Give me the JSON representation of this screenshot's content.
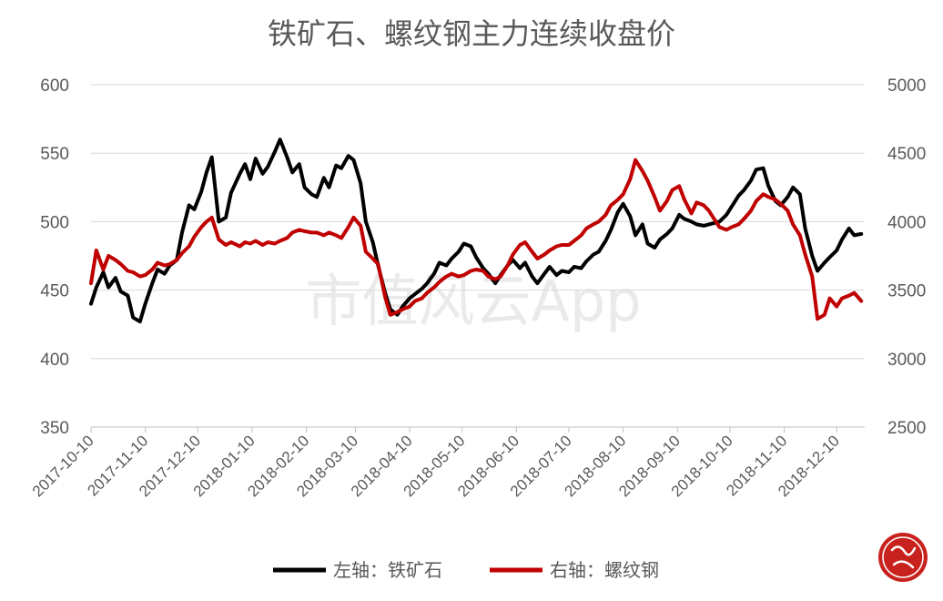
{
  "colors": {
    "iron_ore": "#000000",
    "rebar": "#c00000",
    "seal": "#c8221e"
  },
  "watermark": "市值风云App",
  "chart_data": {
    "type": "line",
    "title": "铁矿石、螺纹钢主力连续收盘价",
    "left_axis": {
      "ylim": [
        350,
        600
      ],
      "ticks": [
        "350",
        "400",
        "450",
        "500",
        "550",
        "600"
      ]
    },
    "right_axis": {
      "ylim": [
        2500,
        5000
      ],
      "ticks": [
        "2500",
        "3000",
        "3500",
        "4000",
        "4500",
        "5000"
      ]
    },
    "x_ticks": [
      "2017-10-10",
      "2017-11-10",
      "2017-12-10",
      "2018-01-10",
      "2018-02-10",
      "2018-03-10",
      "2018-04-10",
      "2018-05-10",
      "2018-06-10",
      "2018-07-10",
      "2018-08-10",
      "2018-09-10",
      "2018-10-10",
      "2018-11-10",
      "2018-12-10"
    ],
    "grid": true,
    "legend_position": "bottom",
    "series": [
      {
        "name": "左轴：铁矿石",
        "axis": "left",
        "color": "#000000",
        "points": [
          [
            "2017-10-10",
            440
          ],
          [
            "2017-10-13",
            452
          ],
          [
            "2017-10-17",
            463
          ],
          [
            "2017-10-20",
            452
          ],
          [
            "2017-10-24",
            459
          ],
          [
            "2017-10-27",
            449
          ],
          [
            "2017-10-31",
            446
          ],
          [
            "2017-11-03",
            430
          ],
          [
            "2017-11-07",
            427
          ],
          [
            "2017-11-10",
            440
          ],
          [
            "2017-11-14",
            455
          ],
          [
            "2017-11-17",
            465
          ],
          [
            "2017-11-21",
            462
          ],
          [
            "2017-11-24",
            468
          ],
          [
            "2017-11-28",
            472
          ],
          [
            "2017-12-01",
            492
          ],
          [
            "2017-12-05",
            512
          ],
          [
            "2017-12-08",
            509
          ],
          [
            "2017-12-12",
            522
          ],
          [
            "2017-12-15",
            536
          ],
          [
            "2017-12-18",
            547
          ],
          [
            "2017-12-22",
            500
          ],
          [
            "2017-12-26",
            503
          ],
          [
            "2017-12-29",
            521
          ],
          [
            "2018-01-03",
            535
          ],
          [
            "2018-01-06",
            542
          ],
          [
            "2018-01-09",
            531
          ],
          [
            "2018-01-12",
            546
          ],
          [
            "2018-01-16",
            535
          ],
          [
            "2018-01-19",
            540
          ],
          [
            "2018-01-23",
            551
          ],
          [
            "2018-01-26",
            560
          ],
          [
            "2018-01-30",
            547
          ],
          [
            "2018-02-02",
            536
          ],
          [
            "2018-02-06",
            542
          ],
          [
            "2018-02-09",
            525
          ],
          [
            "2018-02-13",
            520
          ],
          [
            "2018-02-16",
            518
          ],
          [
            "2018-02-20",
            532
          ],
          [
            "2018-02-23",
            525
          ],
          [
            "2018-02-27",
            541
          ],
          [
            "2018-03-02",
            539
          ],
          [
            "2018-03-06",
            548
          ],
          [
            "2018-03-09",
            545
          ],
          [
            "2018-03-13",
            528
          ],
          [
            "2018-03-16",
            500
          ],
          [
            "2018-03-20",
            485
          ],
          [
            "2018-03-23",
            468
          ],
          [
            "2018-03-27",
            448
          ],
          [
            "2018-03-30",
            436
          ],
          [
            "2018-04-03",
            432
          ],
          [
            "2018-04-06",
            438
          ],
          [
            "2018-04-10",
            444
          ],
          [
            "2018-04-13",
            447
          ],
          [
            "2018-04-17",
            451
          ],
          [
            "2018-04-20",
            455
          ],
          [
            "2018-04-24",
            462
          ],
          [
            "2018-04-27",
            470
          ],
          [
            "2018-05-01",
            468
          ],
          [
            "2018-05-04",
            473
          ],
          [
            "2018-05-08",
            478
          ],
          [
            "2018-05-11",
            484
          ],
          [
            "2018-05-15",
            482
          ],
          [
            "2018-05-18",
            474
          ],
          [
            "2018-05-22",
            466
          ],
          [
            "2018-05-25",
            462
          ],
          [
            "2018-05-29",
            455
          ],
          [
            "2018-06-01",
            461
          ],
          [
            "2018-06-05",
            468
          ],
          [
            "2018-06-08",
            472
          ],
          [
            "2018-06-12",
            466
          ],
          [
            "2018-06-15",
            470
          ],
          [
            "2018-06-19",
            460
          ],
          [
            "2018-06-22",
            455
          ],
          [
            "2018-06-26",
            462
          ],
          [
            "2018-06-29",
            467
          ],
          [
            "2018-07-03",
            461
          ],
          [
            "2018-07-06",
            464
          ],
          [
            "2018-07-10",
            463
          ],
          [
            "2018-07-13",
            467
          ],
          [
            "2018-07-17",
            466
          ],
          [
            "2018-07-20",
            471
          ],
          [
            "2018-07-24",
            476
          ],
          [
            "2018-07-27",
            478
          ],
          [
            "2018-07-31",
            486
          ],
          [
            "2018-08-03",
            494
          ],
          [
            "2018-08-07",
            507
          ],
          [
            "2018-08-10",
            513
          ],
          [
            "2018-08-14",
            504
          ],
          [
            "2018-08-17",
            490
          ],
          [
            "2018-08-21",
            498
          ],
          [
            "2018-08-24",
            484
          ],
          [
            "2018-08-28",
            481
          ],
          [
            "2018-08-31",
            487
          ],
          [
            "2018-09-04",
            491
          ],
          [
            "2018-09-07",
            495
          ],
          [
            "2018-09-11",
            505
          ],
          [
            "2018-09-14",
            502
          ],
          [
            "2018-09-18",
            500
          ],
          [
            "2018-09-21",
            498
          ],
          [
            "2018-09-25",
            497
          ],
          [
            "2018-09-28",
            498
          ],
          [
            "2018-10-04",
            500
          ],
          [
            "2018-10-08",
            505
          ],
          [
            "2018-10-11",
            511
          ],
          [
            "2018-10-15",
            519
          ],
          [
            "2018-10-18",
            523
          ],
          [
            "2018-10-22",
            530
          ],
          [
            "2018-10-25",
            538
          ],
          [
            "2018-10-29",
            539
          ],
          [
            "2018-11-01",
            526
          ],
          [
            "2018-11-05",
            515
          ],
          [
            "2018-11-08",
            512
          ],
          [
            "2018-11-12",
            518
          ],
          [
            "2018-11-15",
            525
          ],
          [
            "2018-11-19",
            520
          ],
          [
            "2018-11-22",
            495
          ],
          [
            "2018-11-26",
            475
          ],
          [
            "2018-11-29",
            464
          ],
          [
            "2018-12-03",
            470
          ],
          [
            "2018-12-06",
            474
          ],
          [
            "2018-12-10",
            479
          ],
          [
            "2018-12-13",
            487
          ],
          [
            "2018-12-17",
            495
          ],
          [
            "2018-12-20",
            490
          ],
          [
            "2018-12-24",
            491
          ]
        ]
      },
      {
        "name": "右轴：螺纹钢",
        "axis": "right",
        "color": "#c00000",
        "points": [
          [
            "2017-10-10",
            3550
          ],
          [
            "2017-10-13",
            3790
          ],
          [
            "2017-10-17",
            3650
          ],
          [
            "2017-10-20",
            3750
          ],
          [
            "2017-10-24",
            3720
          ],
          [
            "2017-10-27",
            3690
          ],
          [
            "2017-10-31",
            3640
          ],
          [
            "2017-11-03",
            3630
          ],
          [
            "2017-11-07",
            3600
          ],
          [
            "2017-11-10",
            3610
          ],
          [
            "2017-11-14",
            3650
          ],
          [
            "2017-11-17",
            3700
          ],
          [
            "2017-11-21",
            3680
          ],
          [
            "2017-11-24",
            3690
          ],
          [
            "2017-11-28",
            3720
          ],
          [
            "2017-12-01",
            3770
          ],
          [
            "2017-12-05",
            3820
          ],
          [
            "2017-12-08",
            3890
          ],
          [
            "2017-12-12",
            3960
          ],
          [
            "2017-12-15",
            4000
          ],
          [
            "2017-12-18",
            4030
          ],
          [
            "2017-12-22",
            3870
          ],
          [
            "2017-12-26",
            3830
          ],
          [
            "2017-12-29",
            3850
          ],
          [
            "2018-01-03",
            3820
          ],
          [
            "2018-01-06",
            3850
          ],
          [
            "2018-01-09",
            3840
          ],
          [
            "2018-01-12",
            3860
          ],
          [
            "2018-01-16",
            3830
          ],
          [
            "2018-01-19",
            3850
          ],
          [
            "2018-01-23",
            3840
          ],
          [
            "2018-01-26",
            3860
          ],
          [
            "2018-01-30",
            3880
          ],
          [
            "2018-02-02",
            3920
          ],
          [
            "2018-02-06",
            3940
          ],
          [
            "2018-02-09",
            3930
          ],
          [
            "2018-02-13",
            3920
          ],
          [
            "2018-02-16",
            3920
          ],
          [
            "2018-02-20",
            3900
          ],
          [
            "2018-02-23",
            3920
          ],
          [
            "2018-02-27",
            3900
          ],
          [
            "2018-03-02",
            3880
          ],
          [
            "2018-03-06",
            3960
          ],
          [
            "2018-03-09",
            4030
          ],
          [
            "2018-03-13",
            3970
          ],
          [
            "2018-03-16",
            3780
          ],
          [
            "2018-03-20",
            3730
          ],
          [
            "2018-03-23",
            3690
          ],
          [
            "2018-03-27",
            3450
          ],
          [
            "2018-03-30",
            3320
          ],
          [
            "2018-04-03",
            3340
          ],
          [
            "2018-04-06",
            3360
          ],
          [
            "2018-04-10",
            3380
          ],
          [
            "2018-04-13",
            3420
          ],
          [
            "2018-04-17",
            3440
          ],
          [
            "2018-04-20",
            3480
          ],
          [
            "2018-04-24",
            3520
          ],
          [
            "2018-04-27",
            3560
          ],
          [
            "2018-05-01",
            3600
          ],
          [
            "2018-05-04",
            3620
          ],
          [
            "2018-05-08",
            3600
          ],
          [
            "2018-05-11",
            3610
          ],
          [
            "2018-05-15",
            3640
          ],
          [
            "2018-05-18",
            3650
          ],
          [
            "2018-05-22",
            3640
          ],
          [
            "2018-05-25",
            3600
          ],
          [
            "2018-05-29",
            3580
          ],
          [
            "2018-06-01",
            3600
          ],
          [
            "2018-06-05",
            3680
          ],
          [
            "2018-06-08",
            3760
          ],
          [
            "2018-06-12",
            3830
          ],
          [
            "2018-06-15",
            3850
          ],
          [
            "2018-06-19",
            3780
          ],
          [
            "2018-06-22",
            3730
          ],
          [
            "2018-06-26",
            3760
          ],
          [
            "2018-06-29",
            3790
          ],
          [
            "2018-07-03",
            3820
          ],
          [
            "2018-07-06",
            3830
          ],
          [
            "2018-07-10",
            3830
          ],
          [
            "2018-07-13",
            3860
          ],
          [
            "2018-07-17",
            3900
          ],
          [
            "2018-07-20",
            3950
          ],
          [
            "2018-07-24",
            3980
          ],
          [
            "2018-07-27",
            4000
          ],
          [
            "2018-07-31",
            4050
          ],
          [
            "2018-08-03",
            4120
          ],
          [
            "2018-08-07",
            4160
          ],
          [
            "2018-08-10",
            4200
          ],
          [
            "2018-08-14",
            4310
          ],
          [
            "2018-08-17",
            4450
          ],
          [
            "2018-08-21",
            4370
          ],
          [
            "2018-08-24",
            4300
          ],
          [
            "2018-08-28",
            4180
          ],
          [
            "2018-08-31",
            4080
          ],
          [
            "2018-09-04",
            4150
          ],
          [
            "2018-09-07",
            4230
          ],
          [
            "2018-09-11",
            4260
          ],
          [
            "2018-09-14",
            4160
          ],
          [
            "2018-09-18",
            4060
          ],
          [
            "2018-09-21",
            4140
          ],
          [
            "2018-09-25",
            4120
          ],
          [
            "2018-09-28",
            4080
          ],
          [
            "2018-10-04",
            3960
          ],
          [
            "2018-10-08",
            3940
          ],
          [
            "2018-10-11",
            3960
          ],
          [
            "2018-10-15",
            3980
          ],
          [
            "2018-10-18",
            4020
          ],
          [
            "2018-10-22",
            4080
          ],
          [
            "2018-10-25",
            4150
          ],
          [
            "2018-10-29",
            4200
          ],
          [
            "2018-11-01",
            4180
          ],
          [
            "2018-11-05",
            4160
          ],
          [
            "2018-11-08",
            4130
          ],
          [
            "2018-11-12",
            4080
          ],
          [
            "2018-11-15",
            3980
          ],
          [
            "2018-11-19",
            3900
          ],
          [
            "2018-11-22",
            3760
          ],
          [
            "2018-11-26",
            3600
          ],
          [
            "2018-11-29",
            3290
          ],
          [
            "2018-12-03",
            3320
          ],
          [
            "2018-12-06",
            3440
          ],
          [
            "2018-12-10",
            3380
          ],
          [
            "2018-12-13",
            3440
          ],
          [
            "2018-12-17",
            3460
          ],
          [
            "2018-12-20",
            3480
          ],
          [
            "2018-12-24",
            3420
          ]
        ]
      }
    ]
  }
}
